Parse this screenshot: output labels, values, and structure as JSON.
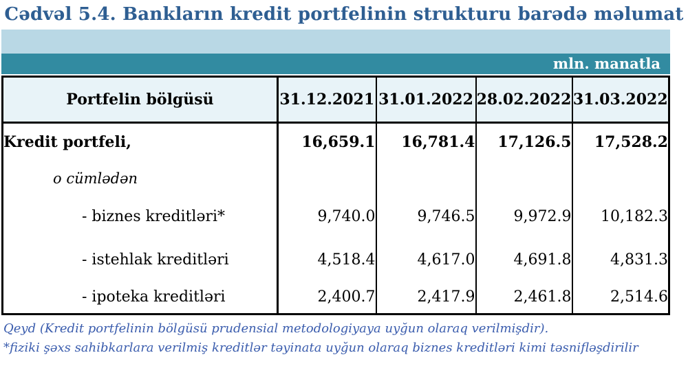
{
  "title": "Cədvəl 5.4. Bankların kredit portfelinin strukturu barədə məlumat",
  "unit_label": "mln. manatla",
  "colors": {
    "title_text": "#2E5E92",
    "band_light": "#B9D8E5",
    "band_teal": "#328BA1",
    "header_bg": "#E8F3F8",
    "border": "#000000",
    "note_text": "#3A5CAD"
  },
  "table": {
    "header": [
      "Portfelin bölgüsü",
      "31.12.2021",
      "31.01.2022",
      "28.02.2022",
      "31.03.2022"
    ],
    "rows": [
      {
        "label": "Kredit portfeli,",
        "emphasis": "bold",
        "values": [
          "16,659.1",
          "16,781.4",
          "17,126.5",
          "17,528.2"
        ]
      },
      {
        "label": "o cümlədən",
        "emphasis": "italic",
        "values": [
          "",
          "",
          "",
          ""
        ]
      },
      {
        "label": "- biznes kreditləri*",
        "emphasis": "normal",
        "values": [
          "9,740.0",
          "9,746.5",
          "9,972.9",
          "10,182.3"
        ]
      },
      {
        "label": "- istehlak kreditləri",
        "emphasis": "normal",
        "values": [
          "4,518.4",
          "4,617.0",
          "4,691.8",
          "4,831.3"
        ]
      },
      {
        "label": "- ipoteka kreditləri",
        "emphasis": "normal",
        "values": [
          "2,400.7",
          "2,417.9",
          "2,461.8",
          "2,514.6"
        ]
      }
    ]
  },
  "notes": [
    "Qeyd (Kredit portfelinin bölgüsü prudensial metodologiyaya uyğun olaraq verilmişdir).",
    "*fiziki şəxs sahibkarlara verilmiş kreditlər təyinata uyğun olaraq biznes kreditləri kimi təsnifləşdirilir"
  ]
}
